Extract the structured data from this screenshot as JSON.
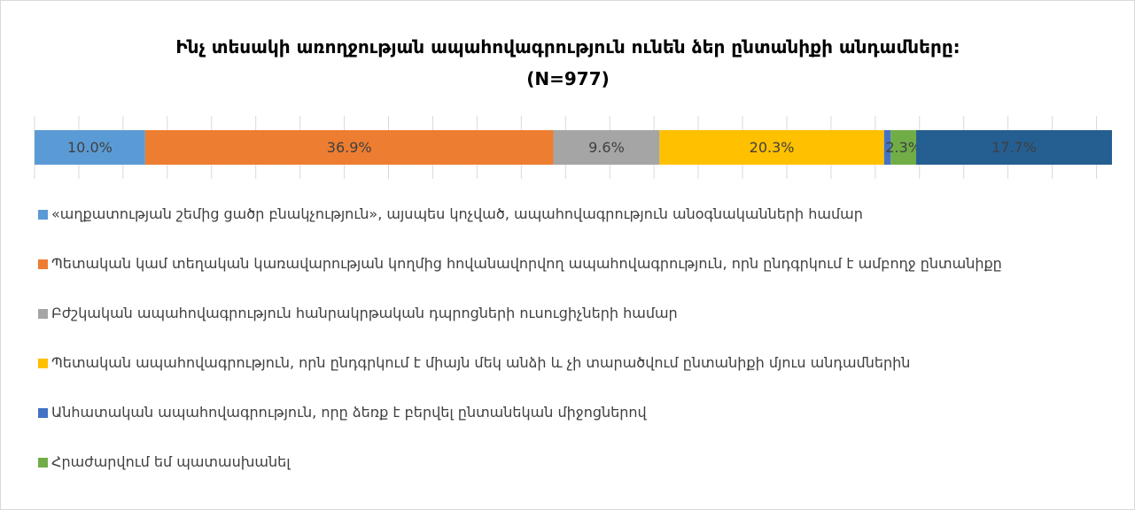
{
  "chart_data": {
    "type": "stacked_bar_h",
    "title": "Ինչ տեսակի առողջության ապահովագրություն ունեն ձեր ընտանիքի անդամները: (N=977)",
    "xlim": [
      0,
      97.4
    ],
    "xticks": [
      0,
      4,
      8,
      12,
      16,
      20,
      24,
      28,
      32,
      36,
      40,
      44,
      48,
      52,
      56,
      60,
      64,
      68,
      72,
      76,
      80,
      84,
      88,
      92,
      96
    ],
    "grid": true,
    "series": [
      {
        "name": "«աղքատության շեմից ցածր բնակչություն», այսպես կոչված, ապահովագրություն անօգնականների համար",
        "color": "#5b9bd5",
        "values": [
          10.0
        ],
        "value_labels": [
          "10.0%"
        ]
      },
      {
        "name": "Պետական  կամ տեղական կառավարության կողմից հովանավորվող ապահովագրություն, որն ընդգրկում է ամբողջ ընտանիքը",
        "color": "#ed7d31",
        "values": [
          36.9
        ],
        "value_labels": [
          "36.9%"
        ]
      },
      {
        "name": "Բժշկական  ապահովագրություն հանրակրթական դպրոցների ուսուցիչների համար",
        "color": "#a5a5a5",
        "values": [
          9.6
        ],
        "value_labels": [
          "9.6%"
        ]
      },
      {
        "name": "Պետական  ապահովագրություն, որն ընդգրկում է միայն մեկ անձի և չի տարածվում ընտանիքի մյուս անդամներին",
        "color": "#ffc000",
        "values": [
          20.3
        ],
        "value_labels": [
          "20.3%"
        ]
      },
      {
        "name": "Անհատական  ապահովագրություն, որը ձեռք է բերվել ընտանեկան միջոցներով",
        "color": "#4472c4",
        "values": [
          0.6
        ],
        "value_labels": [
          null
        ]
      },
      {
        "name": "Հրաժարվում եմ պատասխանել",
        "color": "#70ad47",
        "values": [
          2.3
        ],
        "value_labels": [
          "2.3%"
        ]
      },
      {
        "name": null,
        "color": "#255e91",
        "values": [
          17.7
        ],
        "value_labels": [
          "17.7%"
        ]
      }
    ]
  }
}
